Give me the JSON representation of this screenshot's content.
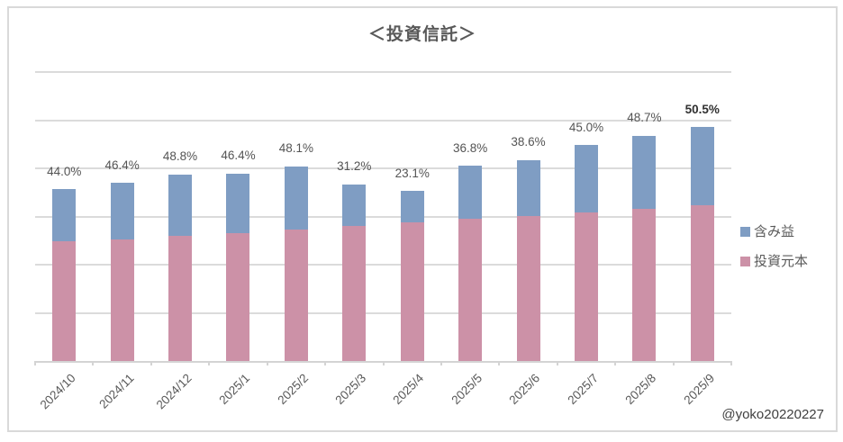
{
  "chart_data": {
    "type": "bar",
    "variant": "stacked-column",
    "title": "＜投資信託＞",
    "categories": [
      "2024/10",
      "2024/11",
      "2024/12",
      "2025/1",
      "2025/2",
      "2025/3",
      "2025/4",
      "2025/5",
      "2025/6",
      "2025/7",
      "2025/8",
      "2025/9"
    ],
    "series": [
      {
        "name": "含み益",
        "key": "gain",
        "color": "#7F9DC3",
        "stack_order": "top",
        "values": [
          1.09,
          1.17,
          1.27,
          1.23,
          1.31,
          0.87,
          0.66,
          1.09,
          1.16,
          1.39,
          1.53,
          1.63
        ]
      },
      {
        "name": "投資元本",
        "key": "principal",
        "color": "#CC91A7",
        "stack_order": "bottom",
        "values": [
          2.48,
          2.53,
          2.6,
          2.66,
          2.73,
          2.8,
          2.87,
          2.96,
          3.01,
          3.09,
          3.15,
          3.23
        ]
      }
    ],
    "point_labels": [
      {
        "text": "44.0%",
        "bold": false
      },
      {
        "text": "46.4%",
        "bold": false
      },
      {
        "text": "48.8%",
        "bold": false
      },
      {
        "text": "46.4%",
        "bold": false
      },
      {
        "text": "48.1%",
        "bold": false
      },
      {
        "text": "31.2%",
        "bold": false
      },
      {
        "text": "23.1%",
        "bold": false
      },
      {
        "text": "36.8%",
        "bold": false
      },
      {
        "text": "38.6%",
        "bold": false
      },
      {
        "text": "45.0%",
        "bold": false
      },
      {
        "text": "48.7%",
        "bold": false
      },
      {
        "text": "50.5%",
        "bold": true
      }
    ],
    "ylim": [
      0,
      6
    ],
    "grid_step": 1,
    "y_axis": {
      "labels_visible": false,
      "units": "relative units estimated from gridlines (1.0 = one gridline interval, axis unlabeled in source)"
    },
    "grid": true,
    "legend_position": "right",
    "x_label_rotation_deg": 45
  },
  "watermark": "@yoko20220227",
  "colors": {
    "gain": "#7F9DC3",
    "principal": "#CC91A7",
    "gridline": "#DBDBDB",
    "axis_line": "#D4D4D4",
    "title_text": "#595959",
    "data_label_text": "#545454",
    "data_label_bold_text": "#303030",
    "tick_label_text": "#595959",
    "frame_border": "#D9D9D9",
    "background": "#FFFFFF"
  }
}
